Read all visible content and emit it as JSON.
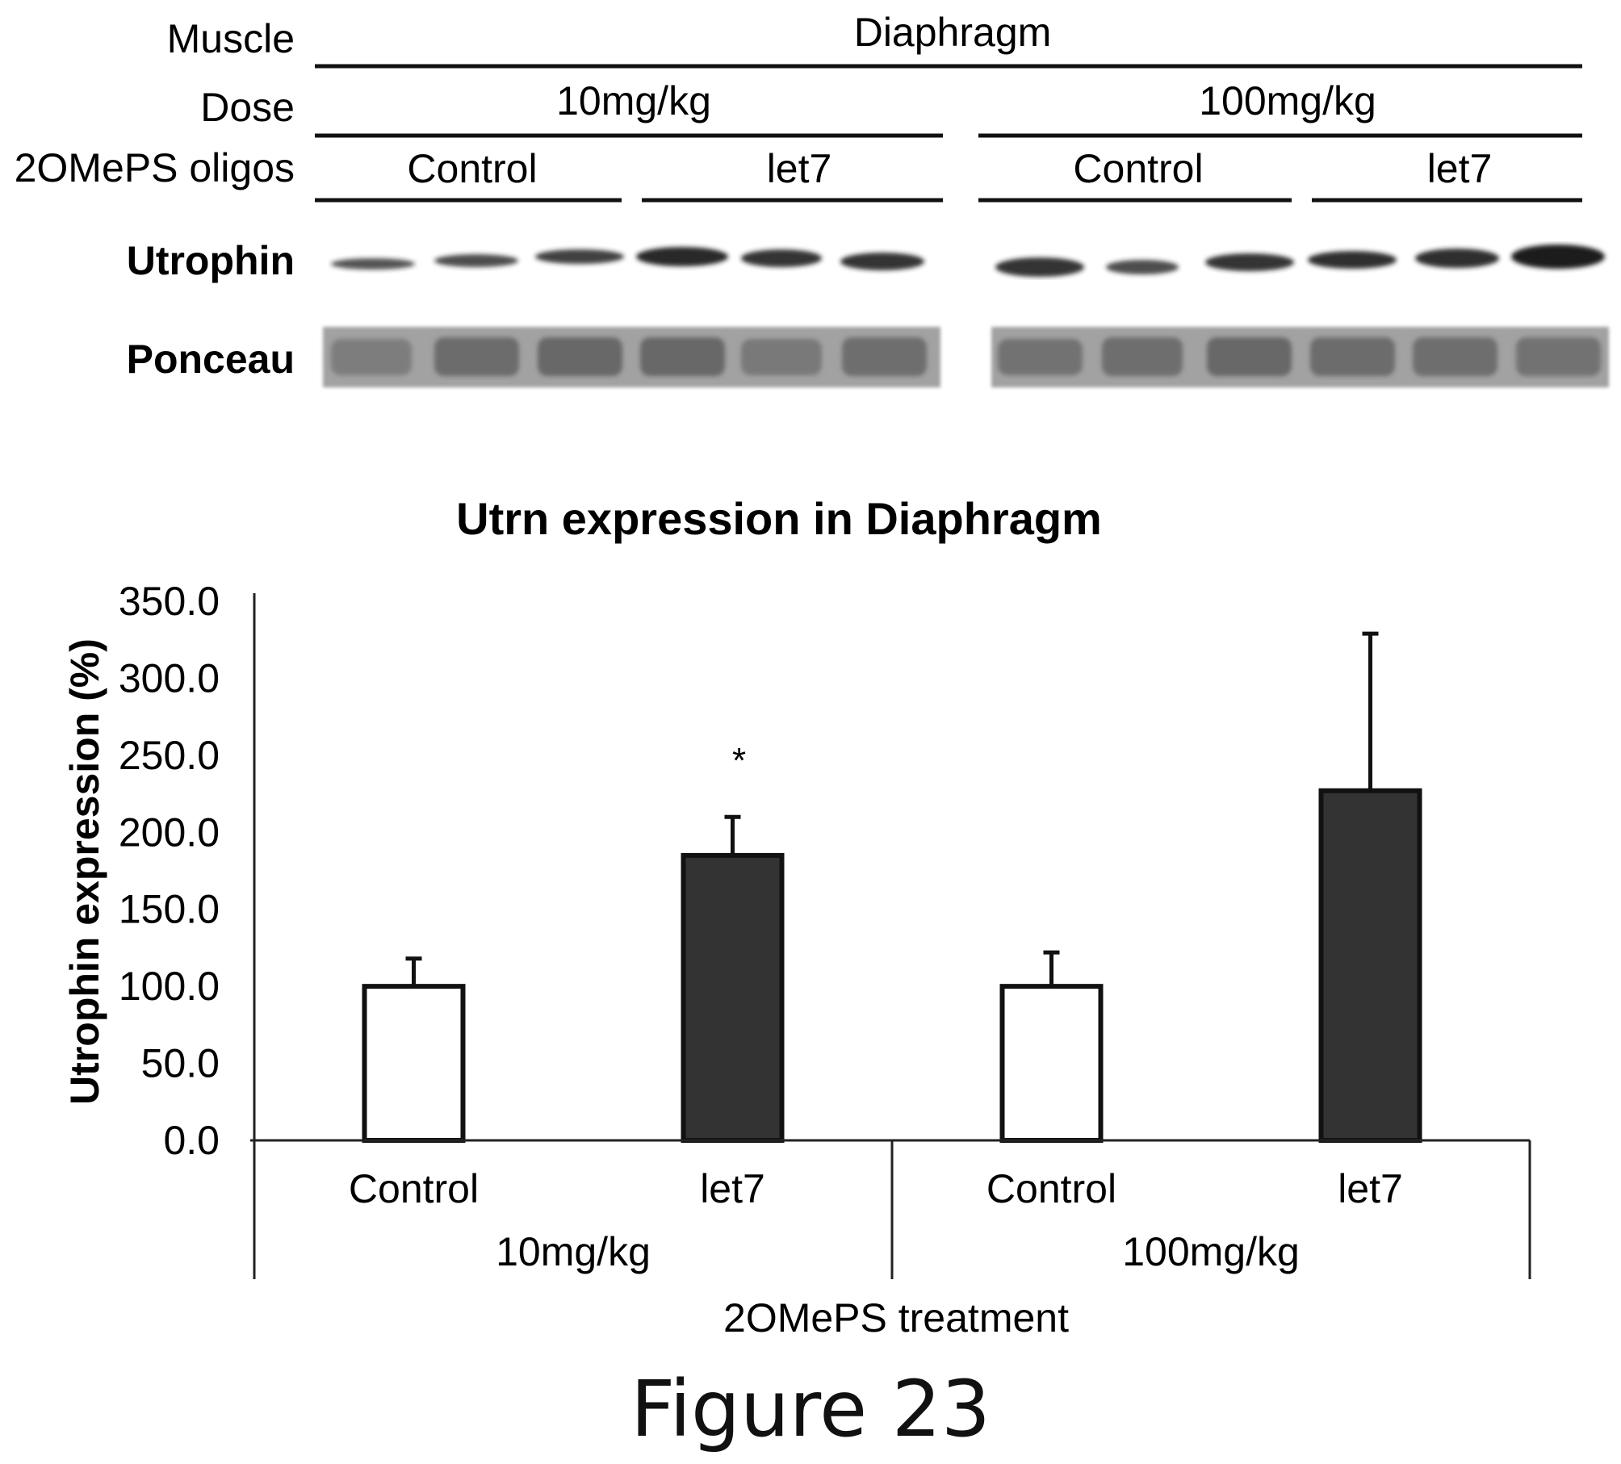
{
  "blot": {
    "row_labels": {
      "muscle": "Muscle",
      "dose": "Dose",
      "oligos": "2OMePS oligos",
      "utrophin": "Utrophin",
      "ponceau": "Ponceau"
    },
    "muscle_value": "Diaphragm",
    "doses": [
      "10mg/kg",
      "100mg/kg"
    ],
    "groups": [
      "Control",
      "let7",
      "Control",
      "let7"
    ]
  },
  "chart_data": {
    "type": "bar",
    "title": "Utrn expression in Diaphragm",
    "ylabel": "Utrophin expression (%)",
    "xlabel": "2OMePS treatment",
    "ylim": [
      0,
      350
    ],
    "yticks": [
      "0.0",
      "50.0",
      "100.0",
      "150.0",
      "200.0",
      "250.0",
      "300.0",
      "350.0"
    ],
    "categories": [
      "Control",
      "let7",
      "Control",
      "let7"
    ],
    "category_groups": [
      "10mg/kg",
      "100mg/kg"
    ],
    "values": [
      100,
      185,
      100,
      227
    ],
    "errors": [
      18,
      25,
      22,
      102
    ],
    "fills": [
      "#ffffff",
      "#333333",
      "#ffffff",
      "#333333"
    ],
    "annotations": [
      {
        "bar": 1,
        "text": "*"
      }
    ]
  },
  "figure_caption": "Figure 23"
}
